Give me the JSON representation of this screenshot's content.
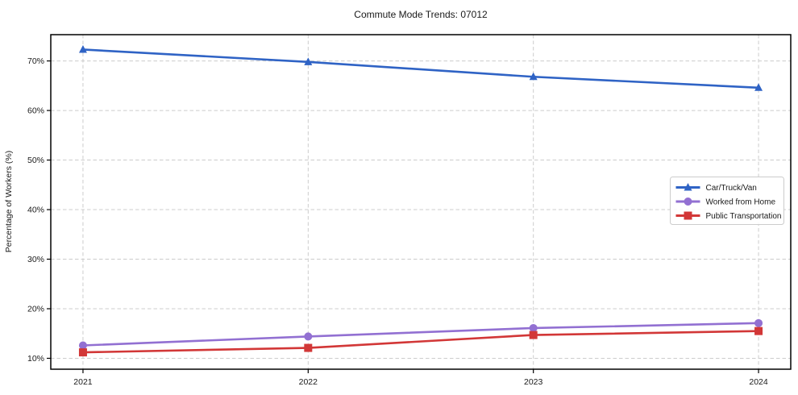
{
  "chart_data": {
    "type": "line",
    "title": "Commute Mode Trends: 07012",
    "xlabel": "",
    "ylabel": "Percentage of Workers (%)",
    "x": [
      2021,
      2022,
      2023,
      2024
    ],
    "x_tick_labels": [
      "2021",
      "2022",
      "2023",
      "2024"
    ],
    "y_ticks": [
      10,
      20,
      30,
      40,
      50,
      60,
      70
    ],
    "y_tick_labels": [
      "10%",
      "20%",
      "30%",
      "40%",
      "50%",
      "60%",
      "70%"
    ],
    "xlim": [
      2020.857,
      2024.143
    ],
    "ylim": [
      7.8,
      75.3
    ],
    "grid": true,
    "grid_color": "#cccccc",
    "axis_color": "#000000",
    "background_color": "#ffffff",
    "legend_position": "center right",
    "legend_border_color": "#cccccc",
    "series": [
      {
        "name": "Car/Truck/Van",
        "color": "#2f63c5",
        "marker": "triangle",
        "values": [
          72.3,
          69.8,
          66.8,
          64.6
        ]
      },
      {
        "name": "Worked from Home",
        "color": "#9270d2",
        "marker": "circle",
        "values": [
          12.6,
          14.4,
          16.1,
          17.1
        ]
      },
      {
        "name": "Public Transportation",
        "color": "#d23737",
        "marker": "square",
        "values": [
          11.2,
          12.1,
          14.7,
          15.5
        ]
      }
    ]
  }
}
